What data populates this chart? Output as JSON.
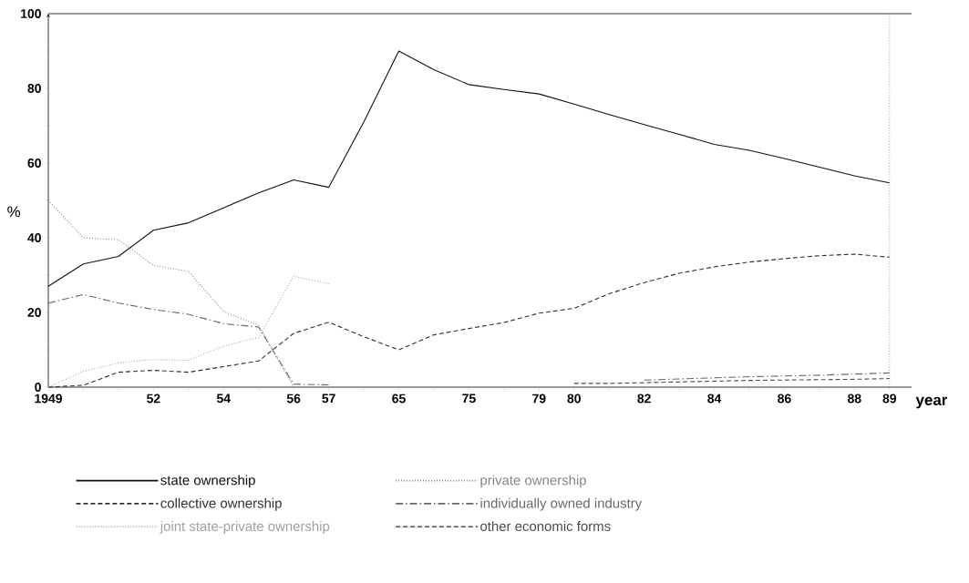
{
  "chart_data": {
    "type": "line",
    "xlabel": "year",
    "ylabel": "%",
    "categories": [
      "1949",
      null,
      null,
      "52",
      null,
      "54",
      null,
      "56",
      "57",
      null,
      "65",
      null,
      "75",
      null,
      "79",
      "80",
      null,
      "82",
      null,
      "84",
      null,
      "86",
      null,
      "88",
      "89"
    ],
    "ylim": [
      0,
      100
    ],
    "yticks": [
      0,
      {
        "value": 10,
        "label": null
      },
      20,
      {
        "value": 30,
        "label": null
      },
      40,
      {
        "value": 50,
        "label": null
      },
      60,
      {
        "value": 70,
        "label": null
      },
      80,
      {
        "value": 90,
        "label": null
      },
      100
    ],
    "series": [
      {
        "name": "state ownership",
        "color": "#101010",
        "line_style": "solid",
        "values": [
          27,
          33,
          35,
          42,
          44,
          48,
          52,
          55.5,
          53.5,
          71,
          90,
          85,
          81,
          79.7,
          78.5,
          75.8,
          73,
          70.3,
          67.7,
          65,
          63.4,
          61.2,
          58.9,
          56.6,
          54.7
        ]
      },
      {
        "name": "private ownership",
        "color": "#848484",
        "line_style": "dotted",
        "values": [
          50,
          40,
          39.5,
          32.6,
          31,
          20.3,
          16.5,
          0,
          null,
          null,
          null,
          null,
          null,
          null,
          null,
          null,
          null,
          null,
          null,
          null,
          null,
          null,
          null,
          null,
          null
        ]
      },
      {
        "name": "collective ownership",
        "color": "#303030",
        "line_style": "dashed",
        "values": [
          0,
          0.5,
          4,
          4.5,
          4,
          5.5,
          7,
          14.4,
          17.4,
          13.5,
          10,
          14,
          15.7,
          17.3,
          19.8,
          21.1,
          25,
          28,
          30.5,
          32.2,
          33.5,
          34.4,
          35.2,
          35.6,
          34.8
        ]
      },
      {
        "name": "individually owned industry",
        "color": "#686868",
        "line_style": "dashdot",
        "values": [
          22.5,
          24.8,
          22.5,
          20.8,
          19.5,
          17,
          16.1,
          0.8,
          0.6,
          null,
          null,
          null,
          null,
          null,
          null,
          null,
          null,
          1.9,
          2.2,
          2.5,
          2.8,
          3,
          3.2,
          3.5,
          3.8
        ]
      },
      {
        "name": "joint state-private ownership",
        "color": "#a0a0a0",
        "line_style": "dotted",
        "values": [
          0,
          4.2,
          6.5,
          7.4,
          7.2,
          11,
          13.3,
          29.7,
          27.7,
          null,
          null,
          null,
          null,
          null,
          null,
          null,
          null,
          null,
          null,
          null,
          null,
          null,
          null,
          null,
          null
        ]
      },
      {
        "name": "other economic forms",
        "color": "#4c4c4c",
        "line_style": "dashed",
        "values": [
          null,
          null,
          null,
          null,
          null,
          null,
          null,
          null,
          null,
          null,
          null,
          null,
          null,
          null,
          null,
          1,
          1,
          1.2,
          1.4,
          1.6,
          1.8,
          1.9,
          2,
          2.1,
          2.3
        ]
      }
    ],
    "ref_lines": [
      {
        "axis": "x",
        "value": "89",
        "line_style": "dotted",
        "color": "#555555"
      }
    ],
    "legend": "bottom"
  }
}
